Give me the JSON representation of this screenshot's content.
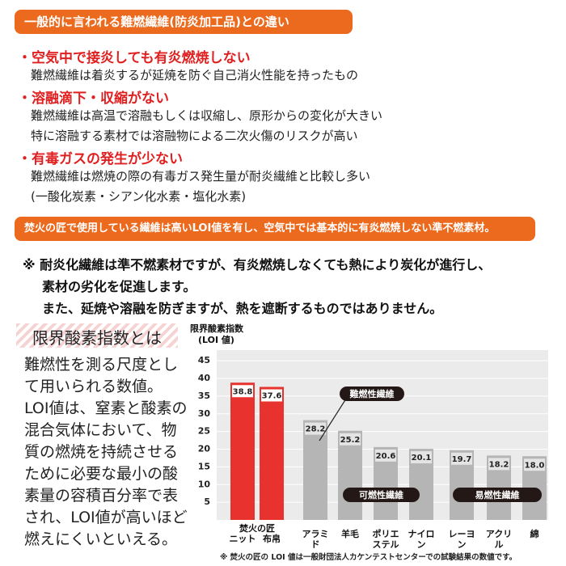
{
  "banner1": "一般的に言われる難燃繊維(防炎加工品)との違い",
  "items": [
    {
      "heading": "・空気中で接炎しても有炎燃焼しない",
      "lines": [
        "難燃繊維は着炎するが延焼を防ぐ自己消火性能を持ったもの"
      ]
    },
    {
      "heading": "・溶融滴下・収縮がない",
      "lines": [
        "難燃繊維は高温で溶融もしくは収縮し、原形からの変化が大きい",
        "特に溶融する素材では溶融物による二次火傷のリスクが高い"
      ]
    },
    {
      "heading": "・有毒ガスの発生が少ない",
      "lines": [
        "難燃繊維は燃焼の際の有毒ガス発生量が耐炎繊維と比較し多い",
        "(一酸化炭素・シアン化水素・塩化水素)"
      ]
    }
  ],
  "banner2": "焚火の匠で使用している繊維は高いLOI値を有し、空気中では基本的に有炎燃焼しない準不燃素材。",
  "note_lines": [
    "※ 耐炎化繊維は準不燃素材ですが、有炎燃焼しなくても熱により炭化が進行し、",
    "素材の劣化を促進します。",
    "また、延焼や溶融を防ぎますが、熱を遮断するものではありません。"
  ],
  "loi_box": {
    "title": "限界酸素指数とは",
    "lines": [
      "難燃性を測る尺度とし",
      "て用いられる数値。",
      "LOI値は、窒素と酸素の",
      "混合気体において、物",
      "質の燃焼を持続させる",
      "ために必要な最小の酸",
      "素量の容積百分率で表",
      "され、LOI値が高いほど",
      "燃えにくいといえる。"
    ]
  },
  "chart_data": {
    "type": "bar",
    "y_axis_label_lines": [
      "限界酸素指数",
      "(LOI 値)"
    ],
    "group_label": "焚火の匠",
    "categories": [
      "ニット",
      "布帛",
      "アラミド",
      "羊毛",
      "ポリエステル",
      "ナイロン",
      "レーヨン",
      "アクリル",
      "綿"
    ],
    "values": [
      38.8,
      37.6,
      28.2,
      25.2,
      20.6,
      20.1,
      19.7,
      18.2,
      18.0
    ],
    "value_labels": [
      "38.8",
      "37.6",
      "28.2",
      "25.2",
      "20.6",
      "20.1",
      "19.7",
      "18.2",
      "18.0"
    ],
    "colors": [
      "#e8322d",
      "#e8322d",
      "#b5b5b5",
      "#b5b5b5",
      "#b5b5b5",
      "#b5b5b5",
      "#b5b5b5",
      "#b5b5b5",
      "#b5b5b5"
    ],
    "ylim": [
      0,
      48
    ],
    "yticks": [
      5,
      10,
      15,
      20,
      25,
      30,
      35,
      40,
      45
    ],
    "annotations": [
      "難燃性繊維",
      "可燃性繊維",
      "易燃性繊維"
    ],
    "footnote": "※ 焚火の匠の LOI 値は一般財団法人カケンテストセンターでの試験結果の数値です。"
  }
}
